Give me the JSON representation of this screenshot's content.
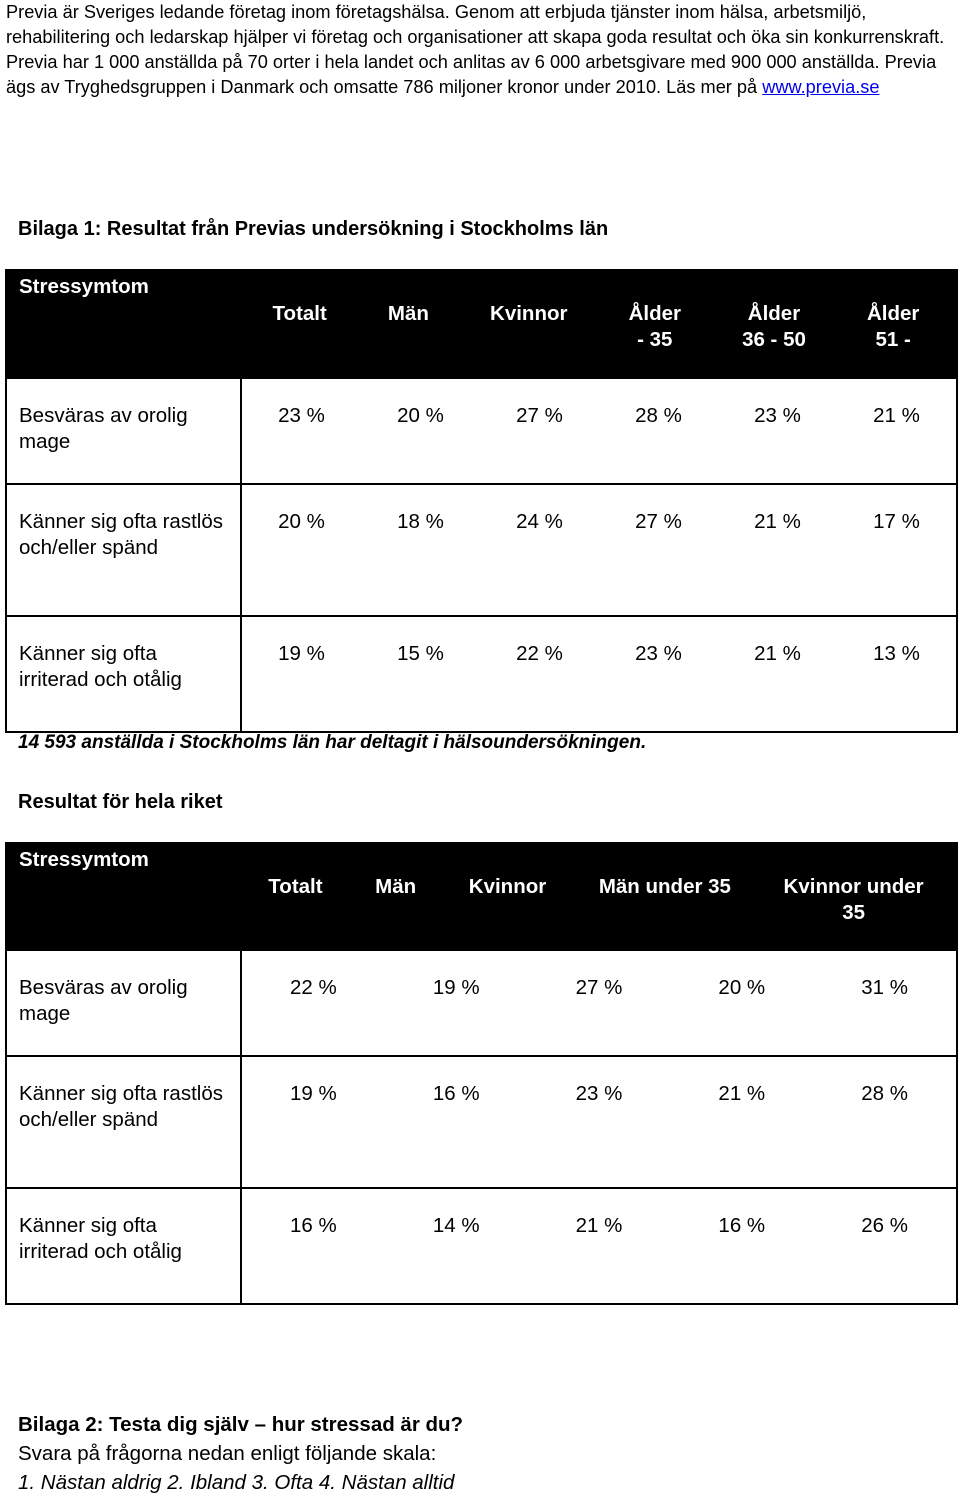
{
  "intro": {
    "text": "Previa är Sveriges ledande företag inom företagshälsa. Genom att erbjuda tjänster inom hälsa, arbetsmiljö, rehabilitering och ledarskap hjälper vi företag och organisationer att skapa goda resultat och öka sin konkurrenskraft. Previa har 1 000 anställda på 70 orter i hela landet och anlitas av 6 000 arbetsgivare med 900 000 anställda. Previa ägs av Tryghedsgruppen i Danmark och omsatte 786 miljoner kronor under 2010. Läs mer på",
    "link": "www.previa.se"
  },
  "bilaga1": {
    "title": "Bilaga 1: Resultat från Previas undersökning i Stockholms län",
    "label_header": "Stressymtom",
    "columns": [
      "Totalt",
      "Män",
      "Kvinnor",
      "Ålder\n- 35",
      "Ålder\n36 - 50",
      "Ålder\n51 -"
    ],
    "rows": [
      {
        "label": "Besväras av orolig mage",
        "values": [
          "23 %",
          "20 %",
          "27 %",
          "28 %",
          "23 %",
          "21 %"
        ]
      },
      {
        "label": "Känner sig ofta rastlös och/eller spänd",
        "values": [
          "20 %",
          "18 %",
          "24 %",
          "27 %",
          "21 %",
          "17 %"
        ]
      },
      {
        "label": "Känner sig ofta irriterad och otålig",
        "values": [
          "19 %",
          "15 %",
          "22 %",
          "23 %",
          "21 %",
          "13 %"
        ]
      }
    ],
    "note": "14 593 anställda i Stockholms län har deltagit i hälsoundersökningen."
  },
  "riket": {
    "title": "Resultat för hela riket",
    "label_header": "Stressymtom",
    "columns": [
      "Totalt",
      "Män",
      "Kvinnor",
      "Män under 35",
      "Kvinnor under\n35"
    ],
    "rows": [
      {
        "label": "Besväras av orolig mage",
        "values": [
          "22 %",
          "19 %",
          "27 %",
          "20 %",
          "31 %"
        ]
      },
      {
        "label": "Känner sig ofta rastlös och/eller spänd",
        "values": [
          "19 %",
          "16 %",
          "23 %",
          "21 %",
          "28 %"
        ]
      },
      {
        "label": "Känner sig ofta irriterad och otålig",
        "values": [
          "16 %",
          "14 %",
          "21 %",
          "16 %",
          "26 %"
        ]
      }
    ]
  },
  "bilaga2": {
    "title": "Bilaga 2: Testa dig själv – hur stressad är du?",
    "instruction": "Svara på frågorna nedan enligt följande skala:",
    "scale": "1. Nästan aldrig 2. Ibland 3. Ofta 4. Nästan alltid"
  }
}
